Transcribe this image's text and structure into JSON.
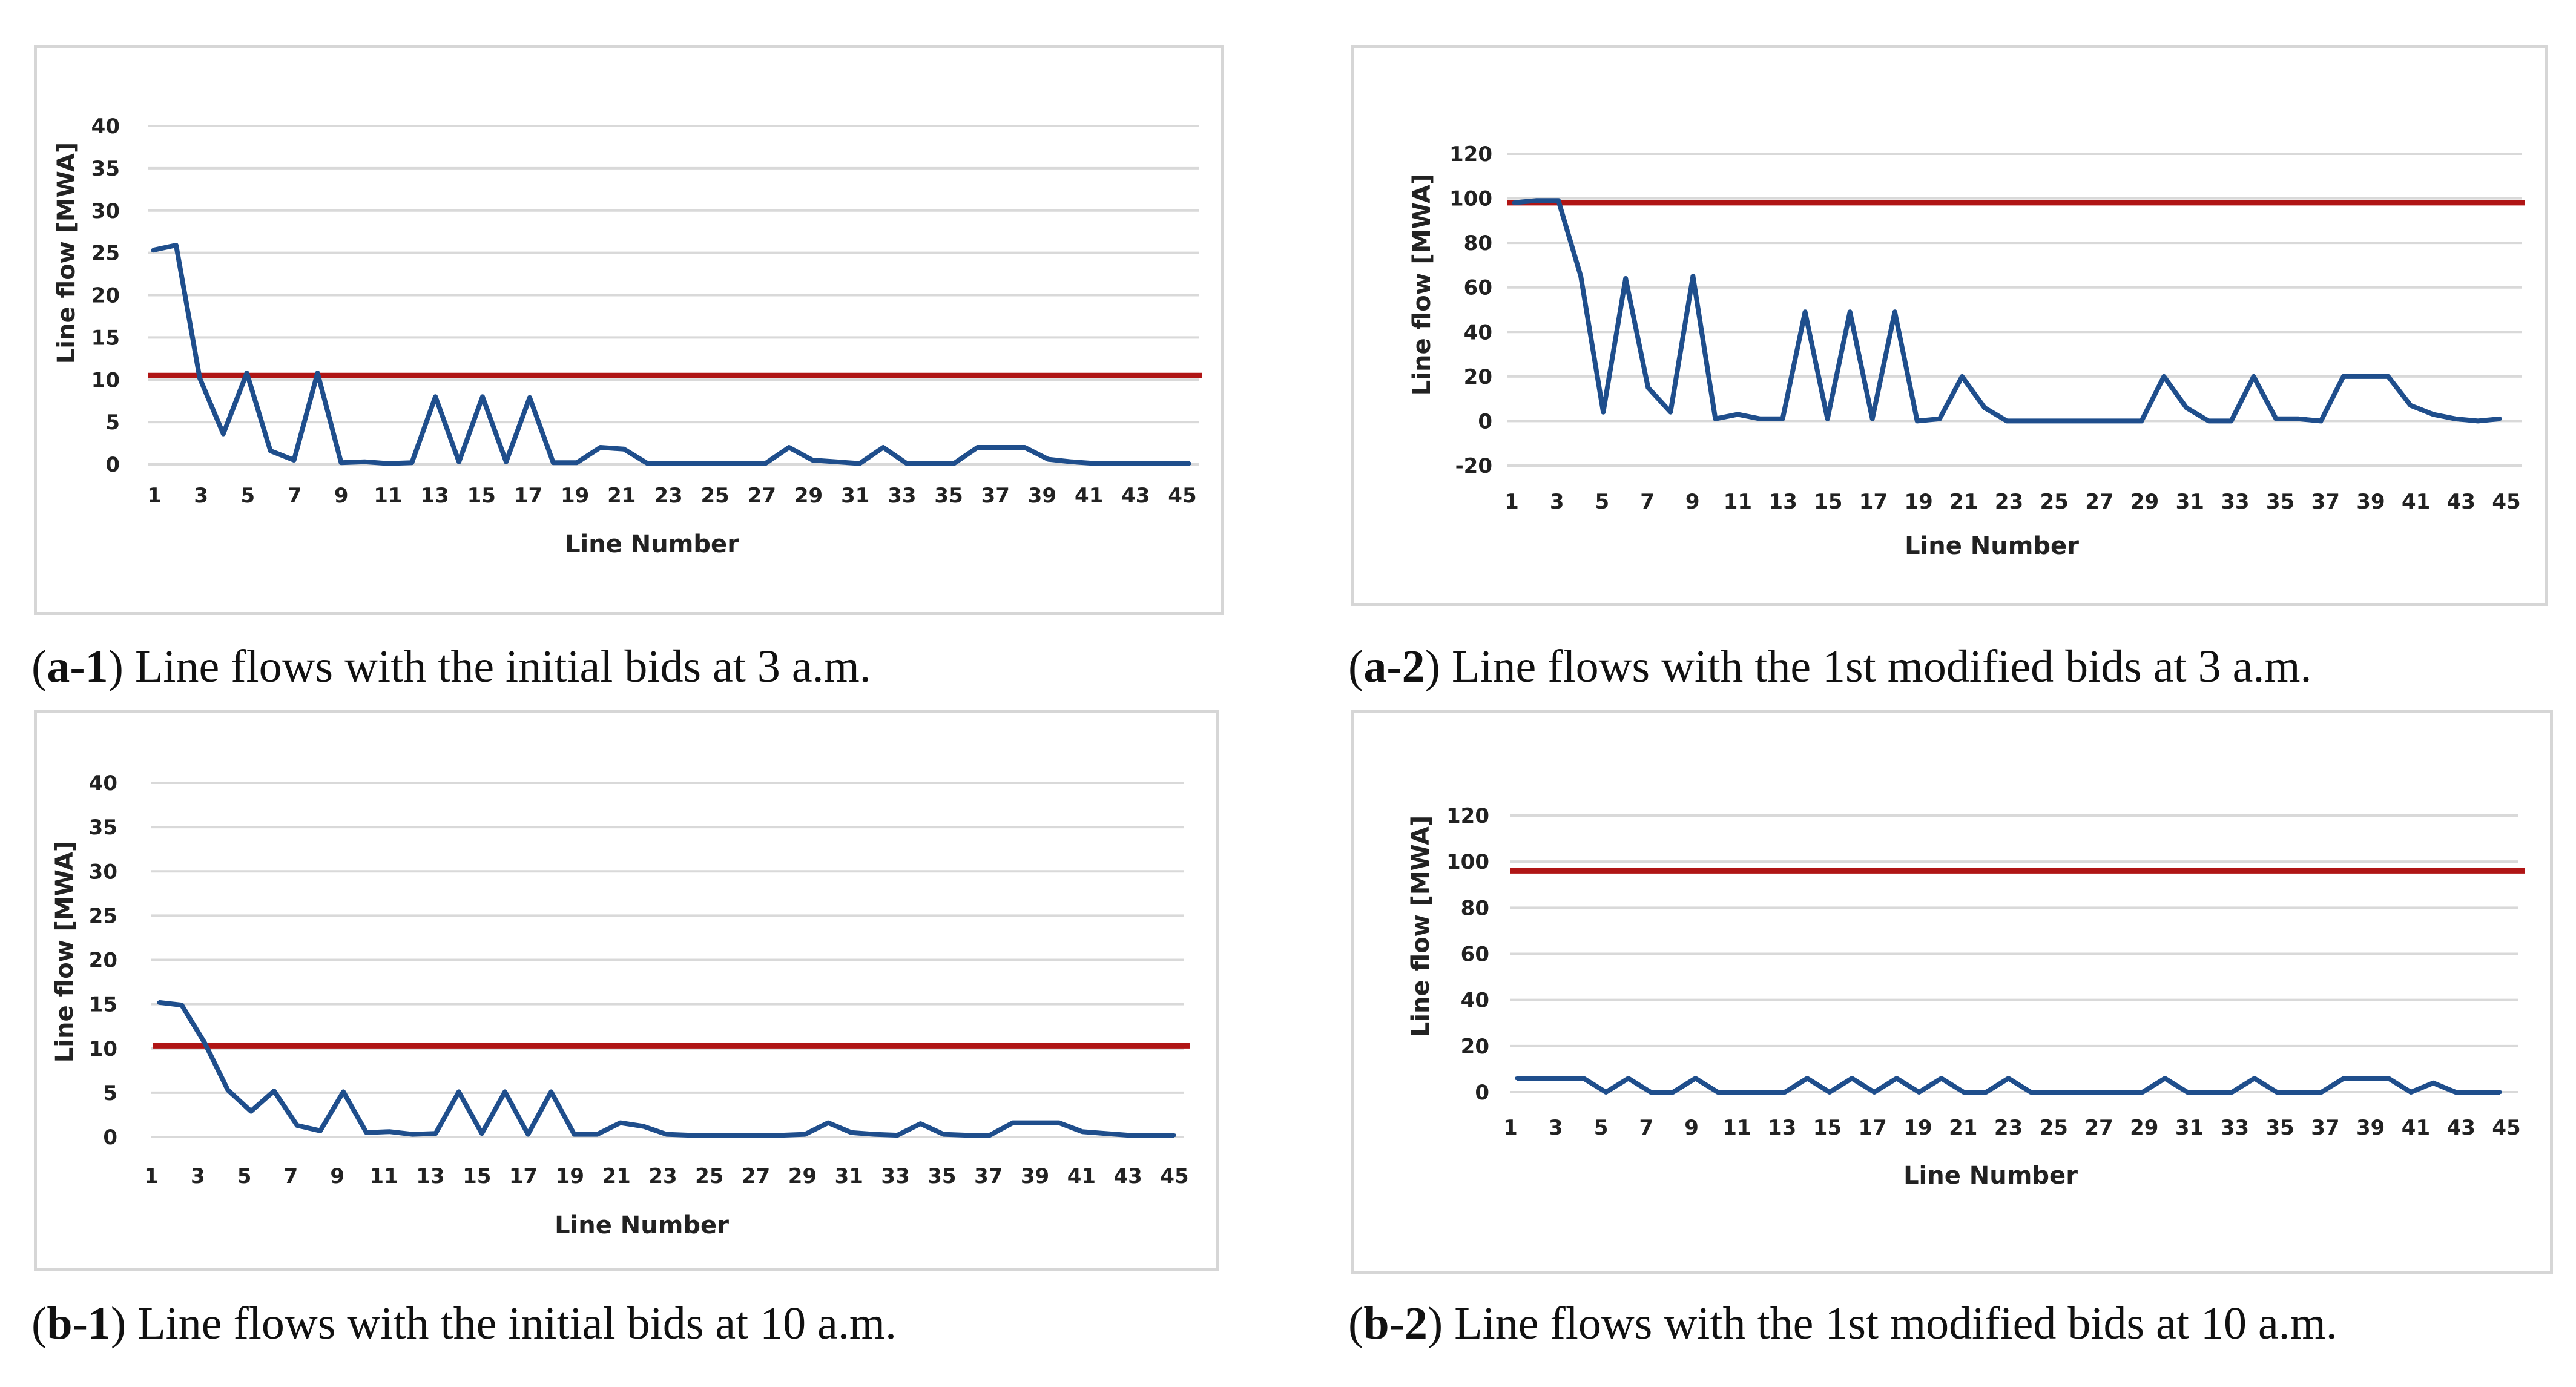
{
  "chart_data": [
    {
      "id": "a-1",
      "type": "line",
      "caption": {
        "label": "a-1",
        "text": "Line flows with the initial bids at 3 a.m."
      },
      "xlabel": "Line Number",
      "ylabel": "Line flow [MWA]",
      "y_ticks": [
        0,
        5,
        10,
        15,
        20,
        25,
        30,
        35,
        40
      ],
      "ylim": [
        0,
        40
      ],
      "x_tick_labels": [
        "1",
        "3",
        "5",
        "7",
        "9",
        "11",
        "13",
        "15",
        "17",
        "19",
        "21",
        "23",
        "25",
        "27",
        "29",
        "31",
        "33",
        "35",
        "37",
        "39",
        "41",
        "43",
        "45"
      ],
      "grid": true,
      "colors": {
        "series": "#1f4e8c",
        "limit": "#b01515",
        "grid": "#d9d9d9"
      },
      "limit_value": 10.5,
      "series": [
        {
          "name": "Line flow",
          "values": [
            25.3,
            25.9,
            10.2,
            3.6,
            10.8,
            1.6,
            0.5,
            10.8,
            0.2,
            0.3,
            0.1,
            0.2,
            8.0,
            0.3,
            8.0,
            0.3,
            7.9,
            0.2,
            0.2,
            2.0,
            1.8,
            0.1,
            0.1,
            0.1,
            0.1,
            0.1,
            0.1,
            2.0,
            0.5,
            0.3,
            0.1,
            2.0,
            0.1,
            0.1,
            0.1,
            2.0,
            2.0,
            2.0,
            0.6,
            0.3,
            0.1,
            0.1,
            0.1,
            0.1,
            0.1
          ]
        }
      ]
    },
    {
      "id": "a-2",
      "type": "line",
      "caption": {
        "label": "a-2",
        "text": "Line flows with the 1st modified bids at 3 a.m."
      },
      "xlabel": "Line Number",
      "ylabel": "Line flow [MWA]",
      "y_ticks": [
        -20,
        0,
        20,
        40,
        60,
        80,
        100,
        120
      ],
      "ylim": [
        -20,
        120
      ],
      "x_tick_labels": [
        "1",
        "3",
        "5",
        "7",
        "9",
        "11",
        "13",
        "15",
        "17",
        "19",
        "21",
        "23",
        "25",
        "27",
        "29",
        "31",
        "33",
        "35",
        "37",
        "39",
        "41",
        "43",
        "45"
      ],
      "grid": true,
      "colors": {
        "series": "#1f4e8c",
        "limit": "#b01515",
        "grid": "#d9d9d9"
      },
      "limit_value": 98,
      "series": [
        {
          "name": "Line flow",
          "values": [
            98,
            99,
            99,
            65,
            4,
            64,
            15,
            4,
            65,
            1,
            3,
            1,
            1,
            49,
            1,
            49,
            1,
            49,
            0,
            1,
            20,
            6,
            0,
            0,
            0,
            0,
            0,
            0,
            0,
            20,
            6,
            0,
            0,
            20,
            1,
            1,
            0,
            20,
            20,
            20,
            7,
            3,
            1,
            0,
            1
          ]
        }
      ]
    },
    {
      "id": "b-1",
      "type": "line",
      "caption": {
        "label": "b-1",
        "text": "Line flows with the initial bids at 10 a.m."
      },
      "xlabel": "Line Number",
      "ylabel": "Line flow [MWA]",
      "y_ticks": [
        0,
        5,
        10,
        15,
        20,
        25,
        30,
        35,
        40
      ],
      "ylim": [
        0,
        40
      ],
      "x_tick_labels": [
        "1",
        "3",
        "5",
        "7",
        "9",
        "11",
        "13",
        "15",
        "17",
        "19",
        "21",
        "23",
        "25",
        "27",
        "29",
        "31",
        "33",
        "35",
        "37",
        "39",
        "41",
        "43",
        "45"
      ],
      "grid": true,
      "colors": {
        "series": "#1f4e8c",
        "limit": "#b01515",
        "grid": "#d9d9d9"
      },
      "limit_value": 10.3,
      "series": [
        {
          "name": "Line flow",
          "values": [
            15.2,
            14.9,
            10.6,
            5.3,
            2.9,
            5.2,
            1.3,
            0.7,
            5.1,
            0.5,
            0.6,
            0.3,
            0.4,
            5.1,
            0.4,
            5.1,
            0.3,
            5.1,
            0.3,
            0.3,
            1.6,
            1.2,
            0.3,
            0.2,
            0.2,
            0.2,
            0.2,
            0.2,
            0.3,
            1.6,
            0.5,
            0.3,
            0.2,
            1.5,
            0.3,
            0.2,
            0.2,
            1.6,
            1.6,
            1.6,
            0.6,
            0.4,
            0.2,
            0.2,
            0.2
          ]
        }
      ]
    },
    {
      "id": "b-2",
      "type": "line",
      "caption": {
        "label": "b-2",
        "text": "Line flows with the 1st modified bids at 10 a.m."
      },
      "xlabel": "Line Number",
      "ylabel": "Line flow [MWA]",
      "y_ticks": [
        0,
        20,
        40,
        60,
        80,
        100,
        120
      ],
      "ylim": [
        0,
        120
      ],
      "x_tick_labels": [
        "1",
        "3",
        "5",
        "7",
        "9",
        "11",
        "13",
        "15",
        "17",
        "19",
        "21",
        "23",
        "25",
        "27",
        "29",
        "31",
        "33",
        "35",
        "37",
        "39",
        "41",
        "43",
        "45"
      ],
      "grid": true,
      "colors": {
        "series": "#1f4e8c",
        "limit": "#b01515",
        "grid": "#d9d9d9"
      },
      "limit_value": 96,
      "series": [
        {
          "name": "Line flow",
          "values": [
            6,
            6,
            6,
            6,
            0,
            6,
            0,
            0,
            6,
            0,
            0,
            0,
            0,
            6,
            0,
            6,
            0,
            6,
            0,
            6,
            0,
            0,
            6,
            0,
            0,
            0,
            0,
            0,
            0,
            6,
            0,
            0,
            0,
            6,
            0,
            0,
            0,
            6,
            6,
            6,
            0,
            4,
            0,
            0,
            0
          ]
        }
      ]
    }
  ]
}
